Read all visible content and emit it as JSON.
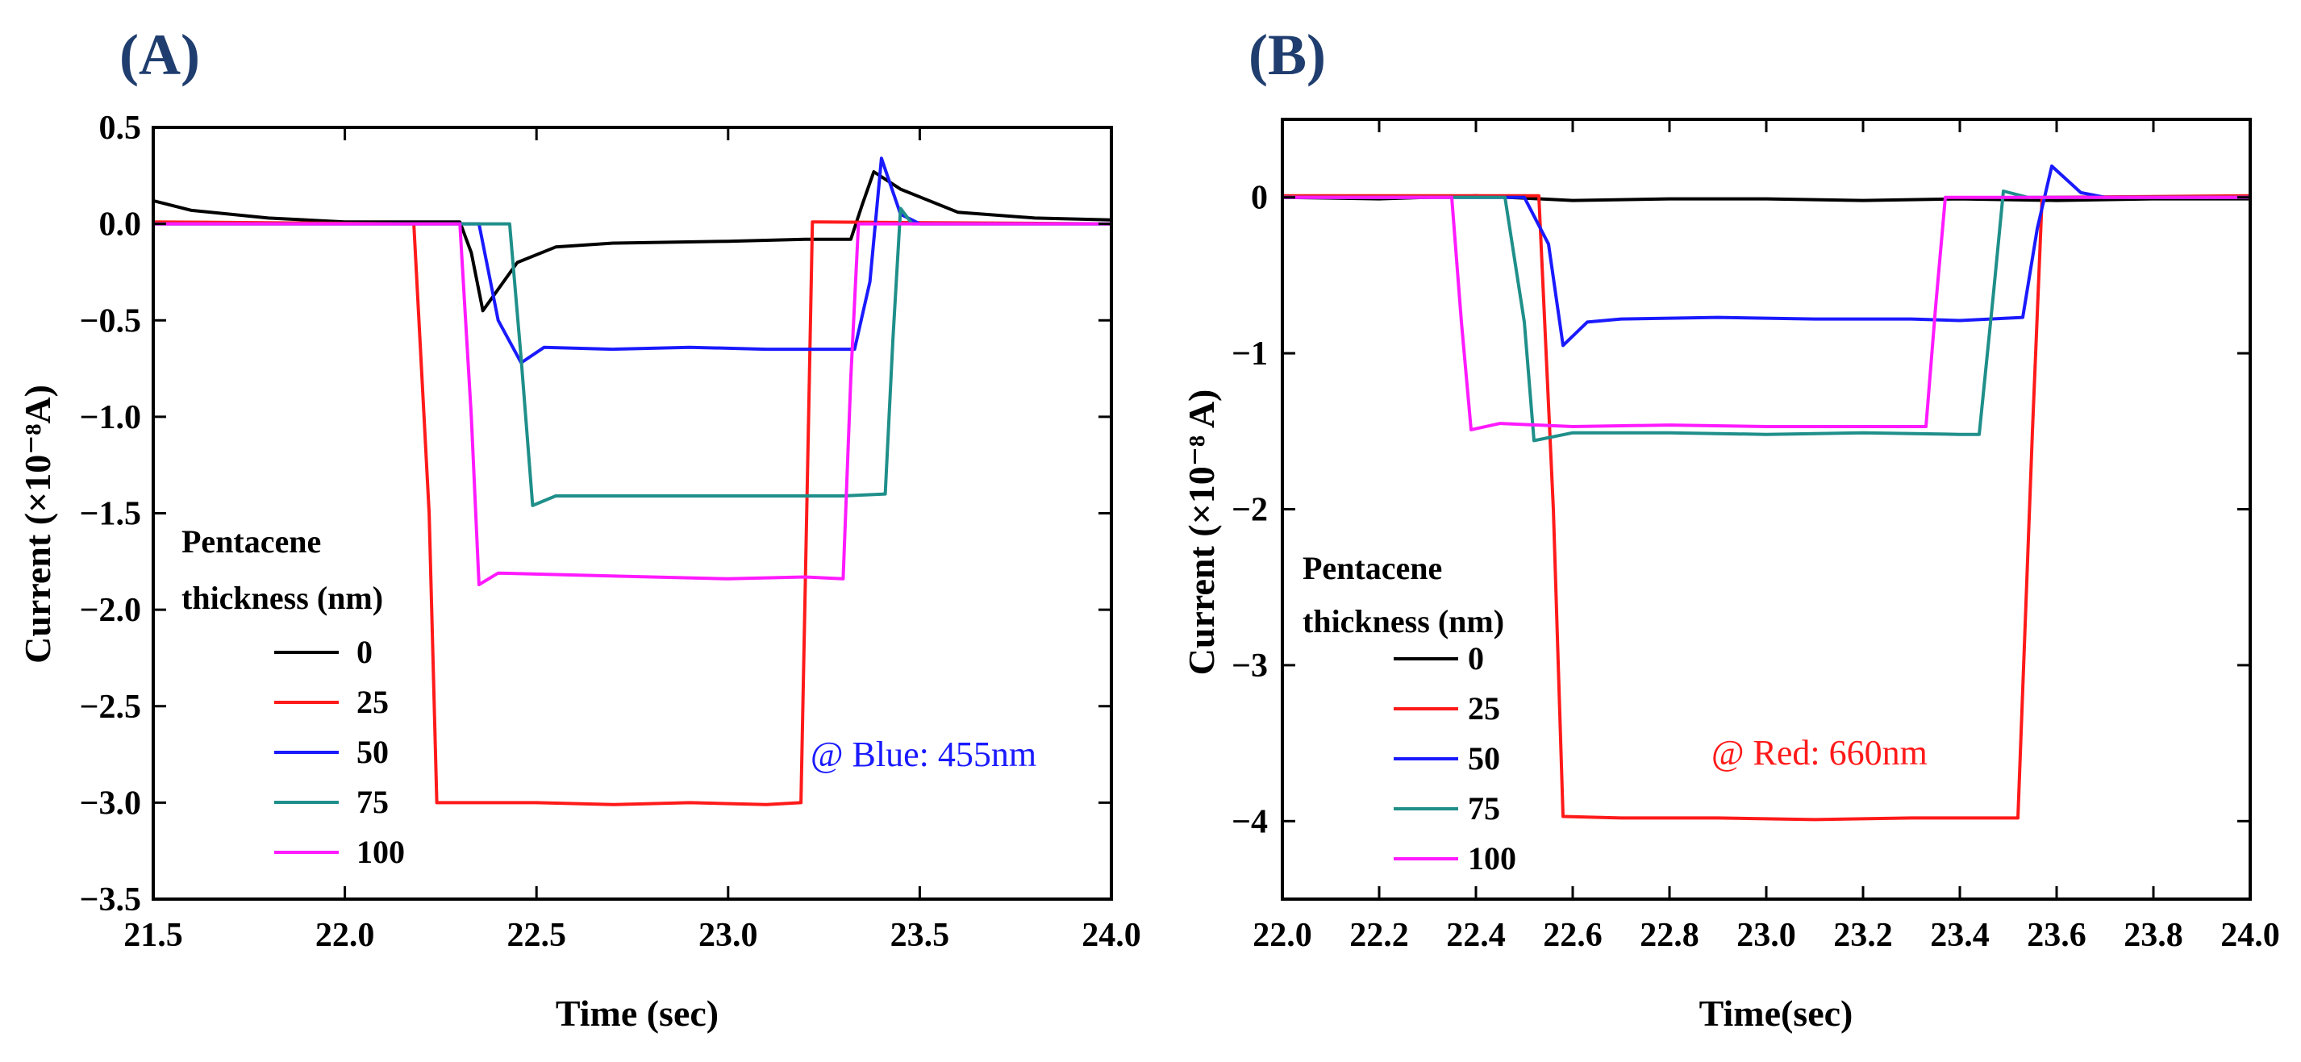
{
  "chart_data": [
    {
      "panel": "(A)",
      "type": "line",
      "xlabel": "Time (sec)",
      "ylabel": "Current (×10⁻⁸A)",
      "xlim": [
        21.5,
        24.0
      ],
      "ylim": [
        -3.5,
        0.5
      ],
      "xticks": [
        21.5,
        22.0,
        22.5,
        23.0,
        23.5,
        24.0
      ],
      "xtick_labels": [
        "21.5",
        "22.0",
        "22.5",
        "23.0",
        "23.5",
        "24.0"
      ],
      "yticks": [
        0.5,
        0.0,
        -0.5,
        -1.0,
        -1.5,
        -2.0,
        -2.5,
        -3.0,
        -3.5
      ],
      "ytick_labels": [
        "0.5",
        "0.0",
        "−0.5",
        "−1.0",
        "−1.5",
        "−2.0",
        "−2.5",
        "−3.0",
        "−3.5"
      ],
      "legend_title": [
        "Pentacene",
        "thickness (nm)"
      ],
      "annotation": {
        "text": "@ Blue: 455nm",
        "color": "#1a1aff"
      },
      "series": [
        {
          "name": "0",
          "color": "#000000",
          "x": [
            21.5,
            21.6,
            21.8,
            22.0,
            22.3,
            22.33,
            22.36,
            22.45,
            22.55,
            22.7,
            23.0,
            23.2,
            23.32,
            23.35,
            23.38,
            23.45,
            23.6,
            23.8,
            24.0
          ],
          "y": [
            0.12,
            0.07,
            0.03,
            0.01,
            0.01,
            -0.15,
            -0.45,
            -0.2,
            -0.12,
            -0.1,
            -0.09,
            -0.08,
            -0.08,
            0.1,
            0.27,
            0.18,
            0.06,
            0.03,
            0.02
          ]
        },
        {
          "name": "25",
          "color": "#ff1a1a",
          "x": [
            21.5,
            22.18,
            22.22,
            22.24,
            22.5,
            22.7,
            22.9,
            23.1,
            23.19,
            23.21,
            23.22,
            24.0
          ],
          "y": [
            0.01,
            0.0,
            -1.5,
            -3.0,
            -3.0,
            -3.01,
            -3.0,
            -3.01,
            -3.0,
            -1.0,
            0.01,
            0.0
          ]
        },
        {
          "name": "50",
          "color": "#1a1aff",
          "x": [
            21.5,
            22.35,
            22.4,
            22.46,
            22.52,
            22.7,
            22.9,
            23.1,
            23.3,
            23.33,
            23.37,
            23.4,
            23.45,
            23.5,
            24.0
          ],
          "y": [
            0.0,
            0.0,
            -0.5,
            -0.72,
            -0.64,
            -0.65,
            -0.64,
            -0.65,
            -0.65,
            -0.65,
            -0.3,
            0.34,
            0.05,
            0.0,
            0.0
          ]
        },
        {
          "name": "75",
          "color": "#1f8f8a",
          "x": [
            21.5,
            22.43,
            22.46,
            22.49,
            22.55,
            22.7,
            22.9,
            23.1,
            23.3,
            23.41,
            23.43,
            23.45,
            23.48,
            24.0
          ],
          "y": [
            0.0,
            0.0,
            -0.7,
            -1.46,
            -1.41,
            -1.41,
            -1.41,
            -1.41,
            -1.41,
            -1.4,
            -0.6,
            0.08,
            0.0,
            0.0
          ]
        },
        {
          "name": "100",
          "color": "#ff1aff",
          "x": [
            21.5,
            22.3,
            22.33,
            22.35,
            22.4,
            22.6,
            22.8,
            23.0,
            23.2,
            23.3,
            23.32,
            23.34,
            24.0
          ],
          "y": [
            0.0,
            0.0,
            -1.0,
            -1.87,
            -1.81,
            -1.82,
            -1.83,
            -1.84,
            -1.83,
            -1.84,
            -0.8,
            0.0,
            0.0
          ]
        }
      ]
    },
    {
      "panel": "(B)",
      "type": "line",
      "xlabel": "Time(sec)",
      "ylabel": "Current (×10⁻⁸ A)",
      "xlim": [
        22.0,
        24.0
      ],
      "ylim": [
        -4.5,
        0.5
      ],
      "xticks": [
        22.0,
        22.2,
        22.4,
        22.6,
        22.8,
        23.0,
        23.2,
        23.4,
        23.6,
        23.8,
        24.0
      ],
      "xtick_labels": [
        "22.0",
        "22.2",
        "22.4",
        "22.6",
        "22.8",
        "23.0",
        "23.2",
        "23.4",
        "23.6",
        "23.8",
        "24.0"
      ],
      "yticks": [
        0,
        -1,
        -2,
        -3,
        -4
      ],
      "ytick_labels": [
        "0",
        "−1",
        "−2",
        "−3",
        "−4"
      ],
      "legend_title": [
        "Pentacene",
        "thickness (nm)"
      ],
      "annotation": {
        "text": "@ Red: 660nm",
        "color": "#ff1a1a"
      },
      "series": [
        {
          "name": "0",
          "color": "#000000",
          "x": [
            22.0,
            22.2,
            22.4,
            22.6,
            22.8,
            23.0,
            23.2,
            23.4,
            23.6,
            23.8,
            24.0
          ],
          "y": [
            0.0,
            -0.01,
            0.01,
            -0.02,
            -0.01,
            -0.01,
            -0.02,
            -0.01,
            -0.02,
            -0.01,
            -0.01
          ]
        },
        {
          "name": "25",
          "color": "#ff1a1a",
          "x": [
            22.0,
            22.53,
            22.56,
            22.58,
            22.7,
            22.9,
            23.1,
            23.3,
            23.5,
            23.52,
            23.55,
            23.57,
            24.0
          ],
          "y": [
            0.01,
            0.01,
            -2.0,
            -3.97,
            -3.98,
            -3.98,
            -3.99,
            -3.98,
            -3.98,
            -3.98,
            -1.5,
            0.0,
            0.01
          ]
        },
        {
          "name": "50",
          "color": "#1a1aff",
          "x": [
            22.0,
            22.5,
            22.55,
            22.58,
            22.63,
            22.7,
            22.9,
            23.1,
            23.3,
            23.4,
            23.53,
            23.56,
            23.59,
            23.65,
            23.7,
            24.0
          ],
          "y": [
            0.0,
            0.0,
            -0.3,
            -0.95,
            -0.8,
            -0.78,
            -0.77,
            -0.78,
            -0.78,
            -0.79,
            -0.77,
            -0.2,
            0.2,
            0.03,
            0.0,
            0.0
          ]
        },
        {
          "name": "75",
          "color": "#1f8f8a",
          "x": [
            22.0,
            22.46,
            22.5,
            22.52,
            22.6,
            22.8,
            23.0,
            23.2,
            23.4,
            23.44,
            23.47,
            23.49,
            23.54,
            24.0
          ],
          "y": [
            0.0,
            0.0,
            -0.8,
            -1.56,
            -1.51,
            -1.51,
            -1.52,
            -1.51,
            -1.52,
            -1.52,
            -0.6,
            0.04,
            0.0,
            0.0
          ]
        },
        {
          "name": "100",
          "color": "#ff1aff",
          "x": [
            22.0,
            22.35,
            22.37,
            22.39,
            22.45,
            22.6,
            22.8,
            23.0,
            23.2,
            23.33,
            23.35,
            23.37,
            24.0
          ],
          "y": [
            0.0,
            0.0,
            -0.8,
            -1.49,
            -1.45,
            -1.47,
            -1.46,
            -1.47,
            -1.47,
            -1.47,
            -0.7,
            0.0,
            0.0
          ]
        }
      ]
    }
  ]
}
